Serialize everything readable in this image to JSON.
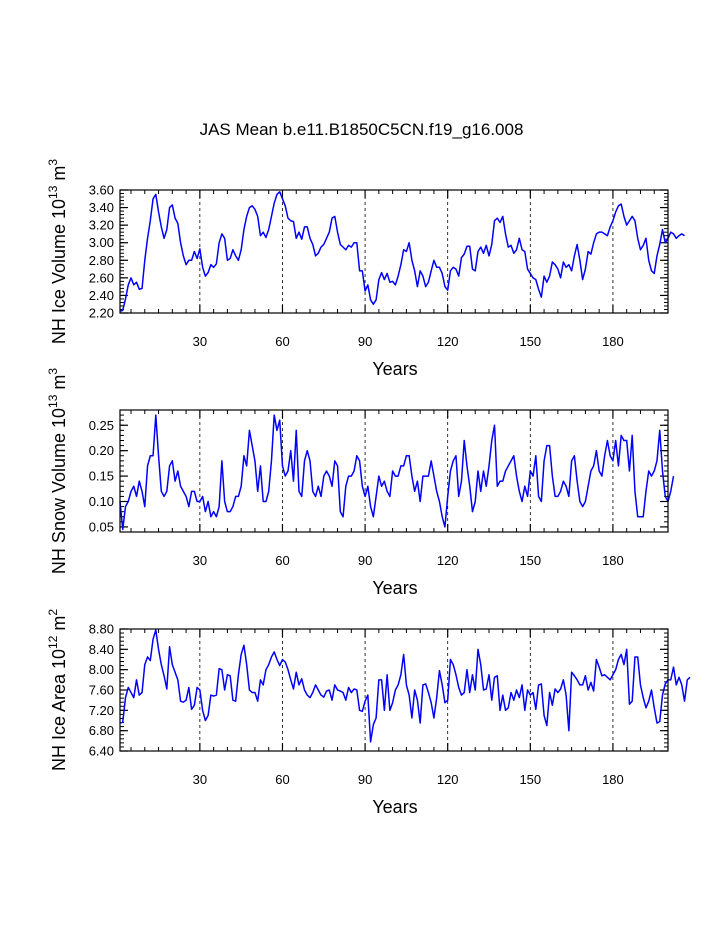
{
  "title": "JAS Mean b.e11.B1850C5CN.f19_g16.008",
  "line_color": "#0000ff",
  "chart_data": [
    {
      "type": "line",
      "title": "JAS Mean b.e11.B1850C5CN.f19_g16.008",
      "xlabel": "Years",
      "ylabel": {
        "prefix": "NH Ice Volume 10",
        "exp": "13",
        "unit": " m",
        "unit_exp": "3"
      },
      "xlim": [
        1,
        200
      ],
      "ylim": [
        2.2,
        3.6
      ],
      "xticks": [
        30,
        60,
        90,
        120,
        150,
        180
      ],
      "xtick_labels": [
        "30",
        "60",
        "90",
        "120",
        "150",
        "180"
      ],
      "yticks": [
        2.2,
        2.4,
        2.6,
        2.8,
        3.0,
        3.2,
        3.4,
        3.6
      ],
      "ytick_labels": [
        "2.20",
        "2.40",
        "2.60",
        "2.80",
        "3.00",
        "3.20",
        "3.40",
        "3.60"
      ],
      "grid": "dashed vertical lines at x ticks",
      "x_start": 1,
      "values": [
        2.22,
        2.23,
        2.36,
        2.52,
        2.6,
        2.52,
        2.55,
        2.47,
        2.48,
        2.8,
        3.05,
        3.25,
        3.5,
        3.55,
        3.35,
        3.18,
        3.05,
        3.15,
        3.4,
        3.43,
        3.28,
        3.22,
        3.0,
        2.85,
        2.75,
        2.8,
        2.8,
        2.9,
        2.82,
        2.93,
        2.72,
        2.62,
        2.66,
        2.75,
        2.72,
        2.76,
        3.0,
        3.1,
        3.05,
        2.8,
        2.82,
        2.92,
        2.85,
        2.8,
        2.92,
        3.15,
        3.3,
        3.4,
        3.42,
        3.38,
        3.3,
        3.08,
        3.12,
        3.06,
        3.15,
        3.3,
        3.45,
        3.55,
        3.58,
        3.5,
        3.42,
        3.28,
        3.25,
        3.24,
        3.05,
        3.12,
        3.04,
        3.18,
        3.18,
        3.05,
        2.98,
        2.85,
        2.88,
        2.95,
        2.98,
        3.05,
        3.12,
        3.28,
        3.3,
        3.12,
        2.98,
        2.95,
        2.92,
        2.97,
        2.95,
        3.0,
        3.0,
        2.68,
        2.68,
        2.45,
        2.52,
        2.35,
        2.3,
        2.35,
        2.58,
        2.66,
        2.58,
        2.65,
        2.55,
        2.56,
        2.52,
        2.62,
        2.75,
        2.92,
        2.9,
        3.0,
        2.8,
        2.68,
        2.5,
        2.68,
        2.62,
        2.5,
        2.55,
        2.68,
        2.8,
        2.72,
        2.72,
        2.65,
        2.5,
        2.46,
        2.68,
        2.72,
        2.7,
        2.62,
        2.83,
        2.87,
        2.96,
        2.96,
        2.7,
        2.68,
        2.9,
        2.95,
        2.88,
        2.97,
        2.85,
        2.98,
        3.25,
        3.28,
        3.23,
        3.3,
        3.1,
        2.95,
        2.97,
        2.88,
        2.92,
        3.05,
        2.92,
        2.9,
        2.7,
        2.65,
        2.6,
        2.58,
        2.47,
        2.38,
        2.62,
        2.55,
        2.62,
        2.78,
        2.75,
        2.7,
        2.6,
        2.78,
        2.72,
        2.75,
        2.68,
        2.85,
        2.98,
        2.8,
        2.58,
        2.7,
        2.9,
        2.87,
        3.0,
        3.1,
        3.12,
        3.12,
        3.1,
        3.08,
        3.18,
        3.25,
        3.35,
        3.42,
        3.44,
        3.3,
        3.2,
        3.25,
        3.3,
        3.25,
        3.05,
        2.92,
        2.97,
        3.05,
        2.8,
        2.68,
        2.65,
        2.85,
        2.98,
        3.15,
        3.0,
        3.05,
        3.12,
        3.1,
        3.05,
        3.08,
        3.1,
        3.08
      ]
    },
    {
      "type": "line",
      "xlabel": "Years",
      "ylabel": {
        "prefix": "NH Snow Volume 10",
        "exp": "13",
        "unit": " m",
        "unit_exp": "3"
      },
      "xlim": [
        1,
        200
      ],
      "ylim": [
        0.04,
        0.28
      ],
      "xticks": [
        30,
        60,
        90,
        120,
        150,
        180
      ],
      "xtick_labels": [
        "30",
        "60",
        "90",
        "120",
        "150",
        "180"
      ],
      "yticks": [
        0.05,
        0.1,
        0.15,
        0.2,
        0.25
      ],
      "ytick_labels": [
        "0.05",
        "0.10",
        "0.15",
        "0.20",
        "0.25"
      ],
      "grid": "dashed vertical lines at x ticks",
      "x_start": 1,
      "values": [
        0.1,
        0.045,
        0.09,
        0.1,
        0.12,
        0.13,
        0.11,
        0.14,
        0.12,
        0.09,
        0.17,
        0.19,
        0.19,
        0.27,
        0.19,
        0.12,
        0.11,
        0.12,
        0.17,
        0.18,
        0.14,
        0.16,
        0.13,
        0.12,
        0.11,
        0.09,
        0.12,
        0.12,
        0.1,
        0.1,
        0.11,
        0.08,
        0.1,
        0.07,
        0.08,
        0.07,
        0.09,
        0.18,
        0.1,
        0.08,
        0.08,
        0.09,
        0.11,
        0.11,
        0.13,
        0.19,
        0.17,
        0.24,
        0.21,
        0.18,
        0.12,
        0.17,
        0.1,
        0.1,
        0.12,
        0.18,
        0.27,
        0.24,
        0.26,
        0.17,
        0.15,
        0.16,
        0.2,
        0.14,
        0.24,
        0.12,
        0.11,
        0.18,
        0.2,
        0.18,
        0.12,
        0.11,
        0.13,
        0.11,
        0.15,
        0.16,
        0.15,
        0.13,
        0.18,
        0.17,
        0.08,
        0.07,
        0.13,
        0.15,
        0.15,
        0.16,
        0.19,
        0.18,
        0.13,
        0.11,
        0.13,
        0.09,
        0.07,
        0.11,
        0.15,
        0.13,
        0.14,
        0.12,
        0.11,
        0.16,
        0.15,
        0.15,
        0.17,
        0.17,
        0.19,
        0.19,
        0.15,
        0.12,
        0.14,
        0.1,
        0.15,
        0.15,
        0.15,
        0.18,
        0.15,
        0.12,
        0.1,
        0.07,
        0.05,
        0.11,
        0.16,
        0.18,
        0.19,
        0.11,
        0.14,
        0.22,
        0.17,
        0.13,
        0.08,
        0.1,
        0.16,
        0.12,
        0.16,
        0.13,
        0.17,
        0.22,
        0.25,
        0.13,
        0.14,
        0.14,
        0.16,
        0.17,
        0.18,
        0.19,
        0.15,
        0.12,
        0.1,
        0.13,
        0.11,
        0.16,
        0.15,
        0.19,
        0.11,
        0.1,
        0.18,
        0.21,
        0.21,
        0.15,
        0.11,
        0.11,
        0.12,
        0.14,
        0.13,
        0.11,
        0.18,
        0.19,
        0.14,
        0.1,
        0.09,
        0.1,
        0.13,
        0.16,
        0.17,
        0.2,
        0.16,
        0.15,
        0.19,
        0.22,
        0.19,
        0.18,
        0.22,
        0.17,
        0.23,
        0.22,
        0.22,
        0.16,
        0.23,
        0.12,
        0.07,
        0.07,
        0.07,
        0.12,
        0.16,
        0.15,
        0.16,
        0.18,
        0.24,
        0.16,
        0.11,
        0.1,
        0.12,
        0.15
      ]
    },
    {
      "type": "line",
      "xlabel": "Years",
      "ylabel": {
        "prefix": "NH Ice Area 10",
        "exp": "12",
        "unit": " m",
        "unit_exp": "2"
      },
      "xlim": [
        1,
        200
      ],
      "ylim": [
        6.4,
        8.8
      ],
      "xticks": [
        30,
        60,
        90,
        120,
        150,
        180
      ],
      "xtick_labels": [
        "30",
        "60",
        "90",
        "120",
        "150",
        "180"
      ],
      "yticks": [
        6.4,
        6.8,
        7.2,
        7.6,
        8.0,
        8.4,
        8.8
      ],
      "ytick_labels": [
        "6.40",
        "6.80",
        "7.20",
        "7.60",
        "8.00",
        "8.40",
        "8.80"
      ],
      "grid": "dashed vertical lines at x ticks",
      "x_start": 1,
      "values": [
        6.95,
        6.97,
        7.45,
        7.65,
        7.55,
        7.45,
        7.8,
        7.5,
        7.55,
        8.1,
        8.25,
        8.18,
        8.6,
        8.78,
        8.4,
        8.1,
        7.88,
        7.62,
        8.45,
        8.1,
        7.95,
        7.8,
        7.38,
        7.36,
        7.4,
        7.65,
        7.22,
        7.3,
        7.65,
        7.6,
        7.2,
        7.0,
        7.1,
        7.5,
        7.48,
        7.5,
        8.02,
        8.0,
        7.6,
        7.9,
        7.88,
        7.4,
        7.38,
        7.9,
        8.3,
        8.48,
        8.1,
        7.6,
        7.55,
        7.55,
        7.38,
        7.8,
        7.7,
        8.0,
        8.1,
        8.25,
        8.35,
        8.2,
        8.08,
        8.2,
        8.15,
        8.0,
        7.8,
        7.62,
        7.95,
        7.7,
        7.82,
        7.6,
        7.5,
        7.45,
        7.55,
        7.7,
        7.6,
        7.5,
        7.46,
        7.58,
        7.6,
        7.4,
        7.7,
        7.6,
        7.58,
        7.55,
        7.4,
        7.65,
        7.55,
        7.62,
        7.6,
        7.2,
        7.18,
        7.38,
        7.5,
        6.58,
        6.92,
        7.05,
        7.8,
        7.8,
        7.2,
        7.9,
        7.2,
        7.35,
        7.6,
        7.7,
        7.9,
        8.3,
        7.7,
        7.5,
        7.05,
        7.6,
        7.4,
        6.95,
        7.7,
        7.72,
        7.55,
        7.35,
        7.05,
        7.45,
        7.98,
        7.7,
        7.35,
        7.4,
        8.2,
        8.1,
        7.9,
        7.65,
        7.5,
        7.55,
        8.0,
        7.55,
        7.9,
        7.6,
        8.4,
        8.1,
        7.6,
        7.62,
        7.9,
        7.4,
        7.85,
        7.88,
        7.2,
        7.5,
        7.2,
        7.25,
        7.55,
        7.4,
        7.6,
        7.45,
        7.7,
        7.2,
        7.6,
        7.5,
        7.55,
        7.22,
        7.7,
        7.72,
        7.1,
        6.9,
        7.55,
        7.3,
        7.62,
        7.55,
        7.62,
        7.8,
        7.5,
        6.8,
        7.95,
        7.88,
        7.8,
        7.7,
        7.7,
        7.88,
        7.6,
        7.75,
        7.58,
        8.2,
        8.05,
        7.88,
        7.9,
        7.85,
        7.8,
        7.9,
        8.0,
        8.2,
        8.3,
        8.1,
        8.4,
        7.32,
        7.38,
        8.25,
        8.25,
        7.7,
        7.45,
        7.25,
        7.38,
        7.6,
        7.25,
        6.95,
        6.98,
        7.5,
        7.72,
        7.8,
        7.8,
        8.05,
        7.7,
        7.85,
        7.7,
        7.38,
        7.8,
        7.85
      ]
    }
  ]
}
